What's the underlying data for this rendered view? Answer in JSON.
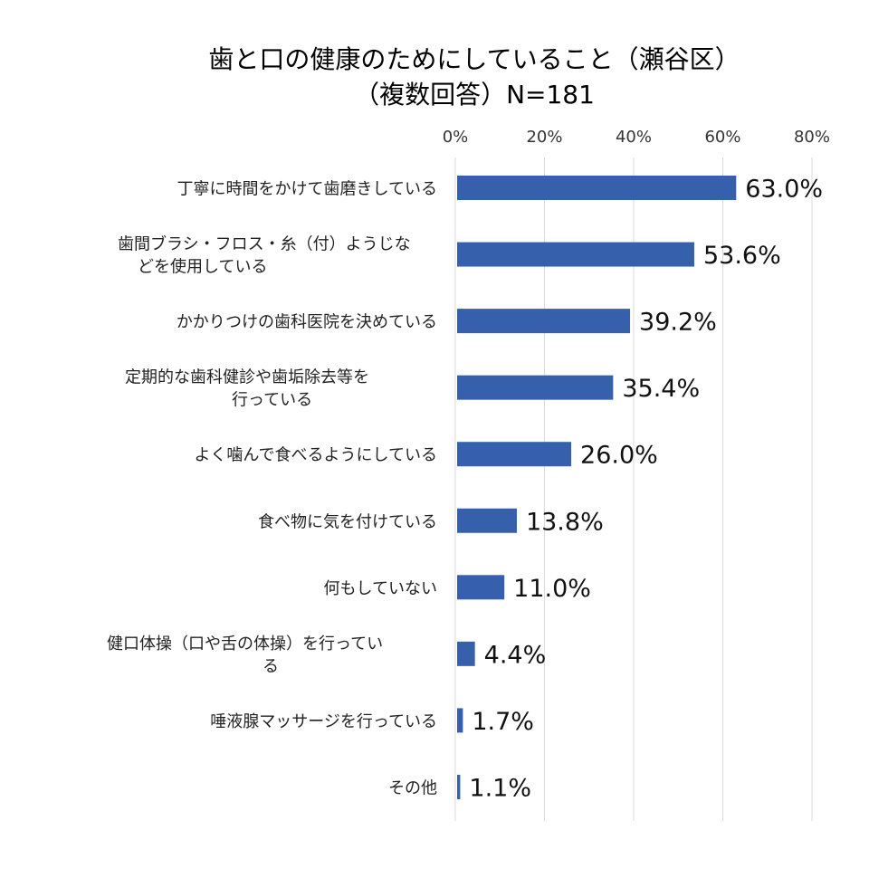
{
  "chart_data": {
    "type": "bar",
    "orientation": "horizontal",
    "title": [
      "歯と口の健康のためにしていること（瀬谷区）",
      "（複数回答）N=181"
    ],
    "categories": [
      [
        "丁寧に時間をかけて歯磨きしている"
      ],
      [
        "歯間ブラシ・フロス・糸（付）ようじな",
        "どを使用している"
      ],
      [
        "かかりつけの歯科医院を決めている"
      ],
      [
        "定期的な歯科健診や歯垢除去等を",
        "行っている"
      ],
      [
        "よく噛んで食べるようにしている"
      ],
      [
        "食べ物に気を付けている"
      ],
      [
        "何もしていない"
      ],
      [
        "健口体操（口や舌の体操）を行ってい",
        "る"
      ],
      [
        "唾液腺マッサージを行っている"
      ],
      [
        "その他"
      ]
    ],
    "values": [
      63.0,
      53.6,
      39.2,
      35.4,
      26.0,
      13.8,
      11.0,
      4.4,
      1.7,
      1.1
    ],
    "value_labels": [
      "63.0%",
      "53.6%",
      "39.2%",
      "35.4%",
      "26.0%",
      "13.8%",
      "11.0%",
      "4.4%",
      "1.7%",
      "1.1%"
    ],
    "x_ticks": [
      0,
      20,
      40,
      60,
      80
    ],
    "x_tick_labels": [
      "0%",
      "20%",
      "40%",
      "60%",
      "80%"
    ],
    "xlim": [
      0,
      80
    ],
    "xlabel": "",
    "ylabel": "",
    "grid": true,
    "axis_position": "top",
    "legend": "none",
    "colors": {
      "bar": "#3660ac",
      "grid": "#d9d9d9"
    }
  }
}
